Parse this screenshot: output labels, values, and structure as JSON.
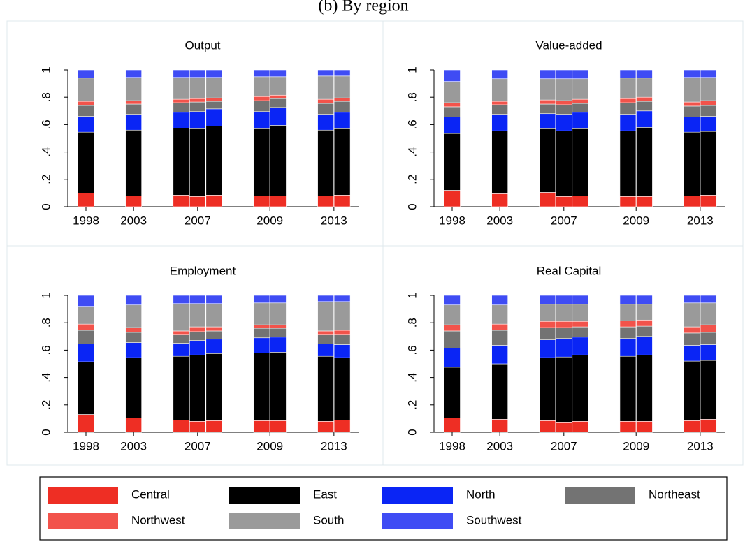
{
  "figure_title": "(b) By region",
  "legend": {
    "series": [
      {
        "name": "Central",
        "color": "#ee2e24"
      },
      {
        "name": "East",
        "color": "#000000"
      },
      {
        "name": "North",
        "color": "#0a25f5"
      },
      {
        "name": "Northeast",
        "color": "#737373"
      },
      {
        "name": "Northwest",
        "color": "#f2534b"
      },
      {
        "name": "South",
        "color": "#9a9a9a"
      },
      {
        "name": "Southwest",
        "color": "#3f4cf4"
      }
    ]
  },
  "chart_data": [
    {
      "type": "bar",
      "stacked": true,
      "title": "Output",
      "categories": [
        "1998",
        "2003",
        "2007",
        null,
        null,
        "2009",
        null,
        "2013",
        null
      ],
      "series": [
        {
          "values": [
            0.1,
            0.08,
            0.085,
            0.075,
            0.085,
            0.08,
            0.08,
            0.08,
            0.085
          ]
        },
        {
          "values": [
            0.445,
            0.48,
            0.49,
            0.495,
            0.505,
            0.49,
            0.515,
            0.48,
            0.485
          ]
        },
        {
          "values": [
            0.115,
            0.115,
            0.115,
            0.125,
            0.125,
            0.125,
            0.13,
            0.115,
            0.12
          ]
        },
        {
          "values": [
            0.08,
            0.075,
            0.07,
            0.07,
            0.055,
            0.08,
            0.065,
            0.08,
            0.08
          ]
        },
        {
          "values": [
            0.03,
            0.025,
            0.025,
            0.025,
            0.025,
            0.03,
            0.025,
            0.03,
            0.025
          ]
        },
        {
          "values": [
            0.17,
            0.17,
            0.16,
            0.155,
            0.15,
            0.145,
            0.135,
            0.17,
            0.16
          ]
        },
        {
          "values": [
            0.06,
            0.055,
            0.055,
            0.055,
            0.055,
            0.05,
            0.05,
            0.045,
            0.045
          ]
        }
      ],
      "ylim": [
        0,
        1
      ],
      "yticks": [
        0,
        {
          "value": 0.2,
          "label": ".2"
        },
        {
          "value": 0.4,
          "label": ".4"
        },
        {
          "value": 0.6,
          "label": ".6"
        },
        {
          "value": 0.8,
          "label": ".8"
        },
        1
      ]
    },
    {
      "type": "bar",
      "stacked": true,
      "title": "Value-added",
      "categories": [
        "1998",
        "2003",
        "2007",
        null,
        null,
        "2009",
        null,
        "2013",
        null
      ],
      "series": [
        {
          "values": [
            0.12,
            0.095,
            0.105,
            0.075,
            0.08,
            0.075,
            0.075,
            0.08,
            0.085
          ]
        },
        {
          "values": [
            0.415,
            0.46,
            0.465,
            0.48,
            0.49,
            0.48,
            0.505,
            0.465,
            0.465
          ]
        },
        {
          "values": [
            0.12,
            0.12,
            0.11,
            0.12,
            0.12,
            0.12,
            0.12,
            0.11,
            0.11
          ]
        },
        {
          "values": [
            0.075,
            0.07,
            0.07,
            0.07,
            0.065,
            0.085,
            0.07,
            0.08,
            0.08
          ]
        },
        {
          "values": [
            0.03,
            0.025,
            0.03,
            0.03,
            0.03,
            0.03,
            0.03,
            0.03,
            0.035
          ]
        },
        {
          "values": [
            0.155,
            0.165,
            0.155,
            0.16,
            0.15,
            0.15,
            0.14,
            0.18,
            0.17
          ]
        },
        {
          "values": [
            0.085,
            0.065,
            0.065,
            0.065,
            0.065,
            0.06,
            0.06,
            0.055,
            0.055
          ]
        }
      ],
      "ylim": [
        0,
        1
      ],
      "yticks": [
        0,
        {
          "value": 0.2,
          "label": ".2"
        },
        {
          "value": 0.4,
          "label": ".4"
        },
        {
          "value": 0.6,
          "label": ".6"
        },
        {
          "value": 0.8,
          "label": ".8"
        },
        1
      ]
    },
    {
      "type": "bar",
      "stacked": true,
      "title": "Employment",
      "categories": [
        "1998",
        "2003",
        "2007",
        null,
        null,
        "2009",
        null,
        "2013",
        null
      ],
      "series": [
        {
          "values": [
            0.13,
            0.105,
            0.09,
            0.08,
            0.085,
            0.085,
            0.085,
            0.08,
            0.09
          ]
        },
        {
          "values": [
            0.385,
            0.44,
            0.465,
            0.485,
            0.49,
            0.495,
            0.5,
            0.475,
            0.455
          ]
        },
        {
          "values": [
            0.13,
            0.11,
            0.095,
            0.105,
            0.105,
            0.11,
            0.11,
            0.09,
            0.095
          ]
        },
        {
          "values": [
            0.1,
            0.075,
            0.065,
            0.065,
            0.06,
            0.07,
            0.065,
            0.07,
            0.075
          ]
        },
        {
          "values": [
            0.045,
            0.035,
            0.025,
            0.035,
            0.03,
            0.025,
            0.025,
            0.025,
            0.03
          ]
        },
        {
          "values": [
            0.13,
            0.165,
            0.2,
            0.17,
            0.17,
            0.16,
            0.16,
            0.215,
            0.21
          ]
        },
        {
          "values": [
            0.08,
            0.07,
            0.06,
            0.06,
            0.06,
            0.055,
            0.055,
            0.045,
            0.045
          ]
        }
      ],
      "ylim": [
        0,
        1
      ],
      "yticks": [
        0,
        {
          "value": 0.2,
          "label": ".2"
        },
        {
          "value": 0.4,
          "label": ".4"
        },
        {
          "value": 0.6,
          "label": ".6"
        },
        {
          "value": 0.8,
          "label": ".8"
        },
        1
      ]
    },
    {
      "type": "bar",
      "stacked": true,
      "title": "Real Capital",
      "categories": [
        "1998",
        "2003",
        "2007",
        null,
        null,
        "2009",
        null,
        "2013",
        null
      ],
      "series": [
        {
          "values": [
            0.105,
            0.095,
            0.085,
            0.075,
            0.08,
            0.08,
            0.08,
            0.085,
            0.095
          ]
        },
        {
          "values": [
            0.37,
            0.405,
            0.46,
            0.475,
            0.485,
            0.475,
            0.485,
            0.435,
            0.43
          ]
        },
        {
          "values": [
            0.14,
            0.135,
            0.13,
            0.135,
            0.13,
            0.13,
            0.135,
            0.115,
            0.115
          ]
        },
        {
          "values": [
            0.125,
            0.11,
            0.09,
            0.08,
            0.075,
            0.085,
            0.075,
            0.09,
            0.09
          ]
        },
        {
          "values": [
            0.045,
            0.045,
            0.045,
            0.045,
            0.04,
            0.045,
            0.045,
            0.045,
            0.055
          ]
        },
        {
          "values": [
            0.145,
            0.14,
            0.125,
            0.125,
            0.125,
            0.12,
            0.115,
            0.175,
            0.16
          ]
        },
        {
          "values": [
            0.07,
            0.07,
            0.065,
            0.065,
            0.065,
            0.065,
            0.065,
            0.055,
            0.055
          ]
        }
      ],
      "ylim": [
        0,
        1
      ],
      "yticks": [
        0,
        {
          "value": 0.2,
          "label": ".2"
        },
        {
          "value": 0.4,
          "label": ".4"
        },
        {
          "value": 0.6,
          "label": ".6"
        },
        {
          "value": 0.8,
          "label": ".8"
        },
        1
      ]
    }
  ]
}
